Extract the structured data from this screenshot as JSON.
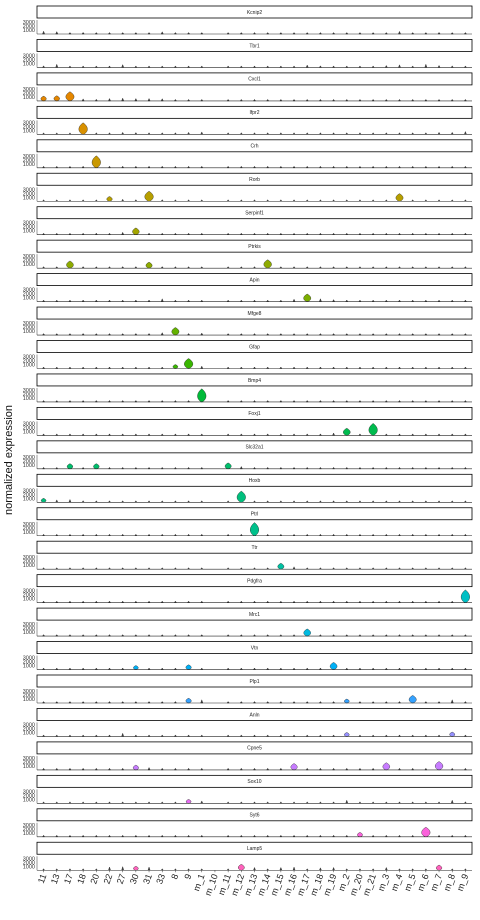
{
  "chart_data": {
    "type": "violin",
    "ylabel": "normalized expression",
    "y_ticks": [
      "1000",
      "2000",
      "3000"
    ],
    "ylim": [
      0,
      3500
    ],
    "facets": [
      "Kcnip2",
      "Tbr1",
      "Cxcl1",
      "Ifpr2",
      "Crh",
      "Rorb",
      "Serpinf1",
      "Ptrkis",
      "Apin",
      "Mfge8",
      "Gfap",
      "Bmp4",
      "Foxj1",
      "Slc32a1",
      "Hoxb",
      "Ptrl",
      "Ttr",
      "Pdgfra",
      "Mrc1",
      "Vtn",
      "Plp1",
      "Anln",
      "Cpne5",
      "Sox10",
      "Syt6",
      "Lamp5"
    ],
    "categories": [
      "11",
      "13",
      "17",
      "18",
      "20",
      "22",
      "27",
      "30",
      "31",
      "33",
      "8",
      "9",
      "m_1",
      "m_10",
      "m_11",
      "m_12",
      "m_13",
      "m_14",
      "m_15",
      "m_16",
      "m_17",
      "m_18",
      "m_19",
      "m_2",
      "m_20",
      "m_21",
      "m_3",
      "m_4",
      "m_5",
      "m_6",
      "m_7",
      "m_8",
      "m_9"
    ],
    "colors": [
      "#F8766D",
      "#EA8331",
      "#D89000",
      "#C09B00",
      "#A3A500",
      "#7CAE00",
      "#39B600",
      "#00BB4E",
      "#00BF7D",
      "#00C1A3",
      "#00BFC4",
      "#00BAE0",
      "#00B0F6",
      "#35A2FF",
      "#9590FF",
      "#C77CFF",
      "#E76BF3",
      "#FA62DB",
      "#FF62BC",
      "#FF6C91"
    ],
    "series": [
      {
        "name": "Kcnip2",
        "color": "#F8766D",
        "values": [
          700,
          600,
          350,
          400,
          250,
          250,
          250,
          250,
          250,
          550,
          250,
          250,
          250,
          0,
          200,
          250,
          200,
          250,
          200,
          200,
          200,
          200,
          200,
          200,
          200,
          200,
          350,
          650,
          200,
          200,
          400,
          250,
          250
        ]
      },
      {
        "name": "Tbr1",
        "color": "#F27D52",
        "values": [
          400,
          800,
          300,
          300,
          250,
          300,
          700,
          300,
          300,
          350,
          250,
          250,
          250,
          0,
          200,
          250,
          200,
          250,
          200,
          200,
          600,
          400,
          200,
          200,
          200,
          300,
          500,
          650,
          200,
          800,
          500,
          400,
          250
        ]
      },
      {
        "name": "Cxcl1",
        "color": "#E58700",
        "values": [
          1200,
          1300,
          2300,
          500,
          400,
          600,
          700,
          600,
          600,
          550,
          250,
          250,
          250,
          0,
          200,
          250,
          200,
          250,
          200,
          200,
          200,
          200,
          200,
          200,
          200,
          200,
          250,
          250,
          200,
          200,
          250,
          250,
          250
        ]
      },
      {
        "name": "Ifpr2",
        "color": "#D89000",
        "values": [
          250,
          300,
          250,
          2900,
          400,
          400,
          500,
          450,
          400,
          400,
          400,
          500,
          600,
          0,
          400,
          400,
          400,
          400,
          400,
          400,
          400,
          400,
          400,
          400,
          400,
          400,
          400,
          400,
          400,
          400,
          500,
          500,
          700
        ]
      },
      {
        "name": "Crh",
        "color": "#C99800",
        "values": [
          250,
          300,
          250,
          400,
          3000,
          400,
          400,
          400,
          400,
          400,
          250,
          250,
          250,
          0,
          300,
          300,
          300,
          300,
          300,
          300,
          300,
          300,
          300,
          300,
          300,
          300,
          300,
          300,
          300,
          300,
          300,
          300,
          300
        ]
      },
      {
        "name": "Rorb",
        "color": "#B79F00",
        "values": [
          250,
          250,
          250,
          250,
          250,
          1200,
          500,
          400,
          2500,
          400,
          250,
          250,
          250,
          0,
          200,
          200,
          200,
          200,
          200,
          200,
          200,
          200,
          200,
          200,
          200,
          200,
          300,
          1900,
          200,
          200,
          200,
          200,
          200
        ]
      },
      {
        "name": "Serpinf1",
        "color": "#A3A500",
        "values": [
          250,
          250,
          250,
          300,
          400,
          250,
          600,
          1700,
          400,
          250,
          250,
          250,
          250,
          0,
          200,
          200,
          200,
          200,
          200,
          200,
          200,
          200,
          200,
          200,
          200,
          200,
          200,
          200,
          200,
          200,
          200,
          300,
          400
        ]
      },
      {
        "name": "Ptrkis",
        "color": "#8EAB00",
        "values": [
          300,
          300,
          1800,
          400,
          300,
          300,
          400,
          400,
          1500,
          400,
          250,
          250,
          250,
          0,
          300,
          300,
          300,
          2100,
          300,
          300,
          300,
          300,
          300,
          300,
          300,
          300,
          300,
          300,
          300,
          300,
          300,
          300,
          300
        ]
      },
      {
        "name": "Apin",
        "color": "#7CAE00",
        "values": [
          250,
          250,
          250,
          400,
          400,
          300,
          300,
          400,
          400,
          700,
          300,
          300,
          300,
          0,
          300,
          300,
          300,
          300,
          300,
          600,
          1900,
          700,
          500,
          400,
          300,
          300,
          300,
          300,
          300,
          300,
          300,
          300,
          300
        ]
      },
      {
        "name": "Mfge8",
        "color": "#64B200",
        "values": [
          250,
          250,
          300,
          400,
          300,
          300,
          300,
          400,
          400,
          600,
          1900,
          400,
          500,
          0,
          300,
          300,
          300,
          300,
          300,
          300,
          300,
          300,
          300,
          300,
          300,
          300,
          300,
          300,
          300,
          300,
          300,
          300,
          300
        ]
      },
      {
        "name": "Gfap",
        "color": "#39B600",
        "values": [
          250,
          250,
          250,
          300,
          300,
          300,
          300,
          300,
          300,
          300,
          1000,
          2500,
          600,
          0,
          300,
          300,
          300,
          300,
          300,
          300,
          300,
          300,
          300,
          300,
          300,
          300,
          300,
          300,
          300,
          300,
          300,
          300,
          300
        ]
      },
      {
        "name": "Bmp4",
        "color": "#00BA38",
        "values": [
          250,
          250,
          250,
          250,
          250,
          250,
          250,
          250,
          250,
          250,
          250,
          300,
          3300,
          0,
          250,
          250,
          250,
          250,
          250,
          250,
          250,
          250,
          250,
          250,
          250,
          250,
          250,
          250,
          250,
          250,
          250,
          250,
          250
        ]
      },
      {
        "name": "Foxj1",
        "color": "#00BB4E",
        "values": [
          250,
          250,
          250,
          250,
          250,
          250,
          250,
          250,
          250,
          250,
          250,
          250,
          250,
          0,
          250,
          250,
          250,
          250,
          250,
          300,
          300,
          300,
          600,
          1800,
          300,
          3000,
          300,
          300,
          300,
          300,
          300,
          300,
          300
        ]
      },
      {
        "name": "Slc32a1",
        "color": "#00BE6C",
        "values": [
          300,
          300,
          1300,
          300,
          1300,
          300,
          300,
          300,
          300,
          300,
          300,
          300,
          300,
          0,
          1500,
          600,
          300,
          300,
          300,
          300,
          300,
          300,
          300,
          300,
          300,
          300,
          300,
          300,
          300,
          300,
          300,
          300,
          300
        ]
      },
      {
        "name": "Hoxb",
        "color": "#00BF7D",
        "values": [
          1000,
          600,
          700,
          400,
          300,
          300,
          300,
          300,
          300,
          300,
          300,
          300,
          300,
          0,
          300,
          2800,
          300,
          300,
          300,
          300,
          300,
          300,
          300,
          300,
          300,
          300,
          300,
          300,
          300,
          300,
          300,
          300,
          300
        ]
      },
      {
        "name": "Ptrl",
        "color": "#00C08B",
        "values": [
          300,
          300,
          300,
          300,
          300,
          300,
          300,
          300,
          300,
          300,
          300,
          300,
          300,
          0,
          300,
          300,
          3300,
          300,
          300,
          300,
          300,
          300,
          300,
          300,
          300,
          300,
          300,
          300,
          300,
          300,
          300,
          300,
          300
        ]
      },
      {
        "name": "Ttr",
        "color": "#00C1A3",
        "values": [
          300,
          300,
          300,
          300,
          300,
          300,
          300,
          300,
          300,
          300,
          300,
          300,
          300,
          0,
          300,
          300,
          300,
          300,
          1500,
          600,
          300,
          300,
          300,
          300,
          300,
          300,
          300,
          300,
          300,
          300,
          300,
          300,
          300
        ]
      },
      {
        "name": "Pdgfra",
        "color": "#00BFC4",
        "values": [
          300,
          300,
          300,
          300,
          300,
          300,
          300,
          300,
          300,
          300,
          300,
          300,
          300,
          0,
          300,
          300,
          300,
          300,
          300,
          300,
          300,
          300,
          300,
          300,
          300,
          300,
          300,
          300,
          300,
          300,
          300,
          300,
          3200
        ]
      },
      {
        "name": "Mrc1",
        "color": "#00BAE0",
        "values": [
          300,
          300,
          300,
          300,
          300,
          300,
          300,
          300,
          300,
          300,
          300,
          300,
          300,
          0,
          300,
          300,
          300,
          300,
          300,
          300,
          1800,
          300,
          300,
          300,
          300,
          300,
          300,
          300,
          300,
          300,
          300,
          300,
          300
        ]
      },
      {
        "name": "Vtn",
        "color": "#00B0F6",
        "values": [
          300,
          300,
          300,
          300,
          300,
          300,
          300,
          1000,
          300,
          300,
          300,
          1200,
          300,
          0,
          300,
          300,
          300,
          300,
          300,
          300,
          300,
          300,
          1800,
          300,
          300,
          300,
          300,
          300,
          300,
          300,
          300,
          300,
          300
        ]
      },
      {
        "name": "Plp1",
        "color": "#35A2FF",
        "values": [
          300,
          300,
          300,
          300,
          300,
          300,
          300,
          300,
          300,
          300,
          300,
          1200,
          800,
          0,
          300,
          300,
          300,
          300,
          300,
          300,
          300,
          300,
          300,
          1000,
          300,
          300,
          300,
          300,
          1900,
          300,
          300,
          800,
          300
        ]
      },
      {
        "name": "Anln",
        "color": "#9590FF",
        "values": [
          300,
          300,
          300,
          300,
          300,
          300,
          800,
          300,
          300,
          300,
          300,
          300,
          300,
          0,
          300,
          300,
          300,
          300,
          300,
          300,
          300,
          300,
          300,
          1000,
          300,
          300,
          300,
          300,
          300,
          300,
          300,
          1100,
          300
        ]
      },
      {
        "name": "Cpne5",
        "color": "#C77CFF",
        "values": [
          400,
          400,
          400,
          400,
          400,
          400,
          400,
          1200,
          600,
          400,
          400,
          400,
          400,
          0,
          400,
          400,
          400,
          400,
          400,
          1600,
          400,
          400,
          400,
          400,
          400,
          400,
          1800,
          400,
          400,
          400,
          2100,
          400,
          400
        ]
      },
      {
        "name": "Sox10",
        "color": "#E76BF3",
        "values": [
          300,
          300,
          300,
          300,
          300,
          300,
          300,
          300,
          300,
          300,
          300,
          1000,
          600,
          0,
          300,
          300,
          300,
          300,
          300,
          300,
          300,
          300,
          300,
          800,
          300,
          300,
          300,
          300,
          300,
          300,
          300,
          800,
          400
        ]
      },
      {
        "name": "Syt6",
        "color": "#FA62DB",
        "values": [
          300,
          300,
          300,
          300,
          300,
          300,
          300,
          300,
          300,
          300,
          300,
          300,
          300,
          0,
          300,
          300,
          300,
          300,
          300,
          300,
          300,
          300,
          300,
          300,
          1100,
          300,
          300,
          300,
          300,
          2400,
          300,
          300,
          300
        ]
      },
      {
        "name": "Lamp5",
        "color": "#FF62BC",
        "values": [
          300,
          300,
          300,
          300,
          300,
          800,
          900,
          1000,
          800,
          300,
          300,
          300,
          300,
          0,
          300,
          1500,
          700,
          300,
          700,
          800,
          300,
          600,
          700,
          300,
          300,
          300,
          700,
          300,
          300,
          300,
          1300,
          300,
          300
        ]
      }
    ]
  }
}
